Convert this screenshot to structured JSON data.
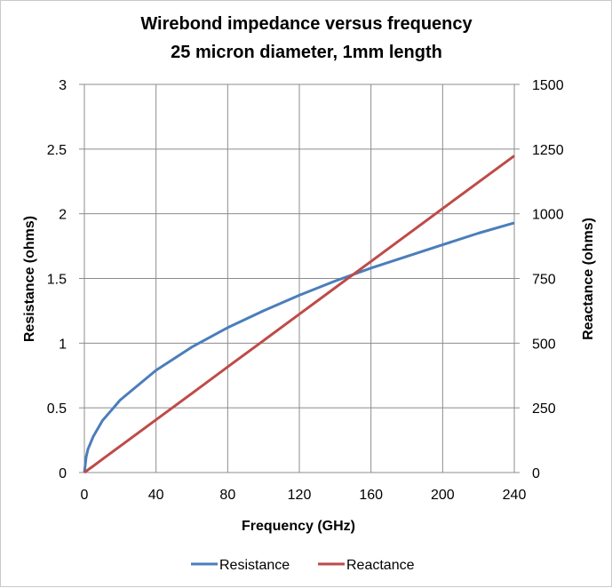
{
  "chart_data": {
    "type": "line",
    "title": "Wirebond impedance versus frequency",
    "subtitle": "25 micron diameter, 1mm length",
    "xlabel": "Frequency (GHz)",
    "ylabel": "Resistance (ohms)",
    "y2label": "Reactance (ohms)",
    "xlim": [
      0,
      240
    ],
    "ylim": [
      0,
      3
    ],
    "y2lim": [
      0,
      1500
    ],
    "x_ticks": [
      "0",
      "40",
      "80",
      "120",
      "160",
      "200",
      "240"
    ],
    "y_ticks": [
      "0",
      "0.5",
      "1",
      "1.5",
      "2",
      "2.5",
      "3"
    ],
    "y2_ticks": [
      "0",
      "250",
      "500",
      "750",
      "1000",
      "1250",
      "1500"
    ],
    "grid": true,
    "legend_position": "bottom",
    "x": [
      0,
      1,
      2,
      5,
      10,
      20,
      40,
      60,
      80,
      100,
      120,
      140,
      160,
      180,
      200,
      220,
      240
    ],
    "series": [
      {
        "name": "Resistance",
        "axis": "left",
        "color": "#4a7ebb",
        "values": [
          0.0,
          0.12,
          0.18,
          0.28,
          0.4,
          0.56,
          0.79,
          0.97,
          1.12,
          1.25,
          1.37,
          1.48,
          1.58,
          1.67,
          1.76,
          1.85,
          1.93
        ]
      },
      {
        "name": "Reactance",
        "axis": "right",
        "color": "#be4b48",
        "values": [
          0,
          5.1,
          10.2,
          25.5,
          51,
          102,
          204,
          306,
          408,
          510,
          612,
          714,
          816,
          918,
          1020,
          1122,
          1224
        ]
      }
    ]
  }
}
